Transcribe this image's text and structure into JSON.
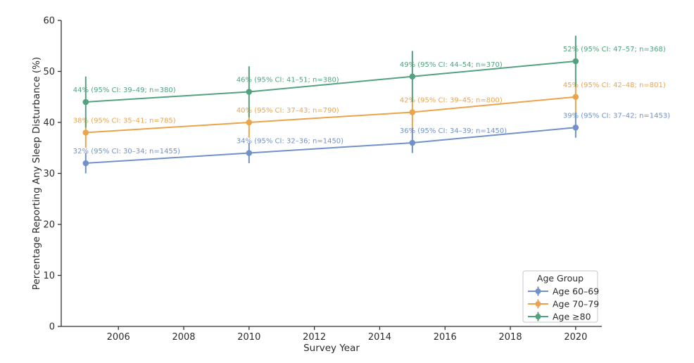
{
  "chart_data": {
    "type": "line",
    "title": "",
    "xlabel": "Survey Year",
    "ylabel": "Percentage Reporting Any Sleep Disturbance (%)",
    "x": [
      2005,
      2010,
      2015,
      2020
    ],
    "xticks": [
      2006,
      2008,
      2010,
      2012,
      2014,
      2016,
      2018,
      2020
    ],
    "yticks": [
      0,
      10,
      20,
      30,
      40,
      50,
      60
    ],
    "xlim": [
      2004.25,
      2020.8
    ],
    "ylim": [
      0,
      60
    ],
    "grid": false,
    "error_bars": true,
    "marker": "circle",
    "legend": {
      "title": "Age Group",
      "position": "lower right"
    },
    "colors": {
      "axis": "#333333",
      "text": "#2b2b2b",
      "legend_border": "#c7c7c7",
      "background": "#ffffff"
    },
    "series": [
      {
        "name": "Age 60–69",
        "color": "#7191C8",
        "values": [
          32,
          34,
          36,
          39
        ],
        "ci_low": [
          30,
          32,
          34,
          37
        ],
        "ci_high": [
          34,
          36,
          39,
          42
        ],
        "n": [
          1455,
          1450,
          1450,
          1453
        ],
        "labels": [
          "32% (95% CI: 30–34; n=1455)",
          "34% (95% CI: 32–36; n=1450)",
          "36% (95% CI: 34–39; n=1450)",
          "39% (95% CI: 37–42; n=1453)"
        ]
      },
      {
        "name": "Age 70–79",
        "color": "#EBA44C",
        "values": [
          38,
          40,
          42,
          45
        ],
        "ci_low": [
          35,
          37,
          39,
          42
        ],
        "ci_high": [
          41,
          43,
          45,
          48
        ],
        "n": [
          785,
          790,
          800,
          801
        ],
        "labels": [
          "38% (95% CI: 35–41; n=785)",
          "40% (95% CI: 37–43; n=790)",
          "42% (95% CI: 39–45; n=800)",
          "45% (95% CI: 42–48; n=801)"
        ]
      },
      {
        "name": "Age ≥80",
        "color": "#53A27F",
        "values": [
          44,
          46,
          49,
          52
        ],
        "ci_low": [
          39,
          41,
          44,
          47
        ],
        "ci_high": [
          49,
          51,
          54,
          57
        ],
        "n": [
          380,
          380,
          370,
          368
        ],
        "labels": [
          "44% (95% CI: 39–49; n=380)",
          "46% (95% CI: 41–51; n=380)",
          "49% (95% CI: 44–54; n=370)",
          "52% (95% CI: 47–57; n=368)"
        ]
      }
    ]
  }
}
